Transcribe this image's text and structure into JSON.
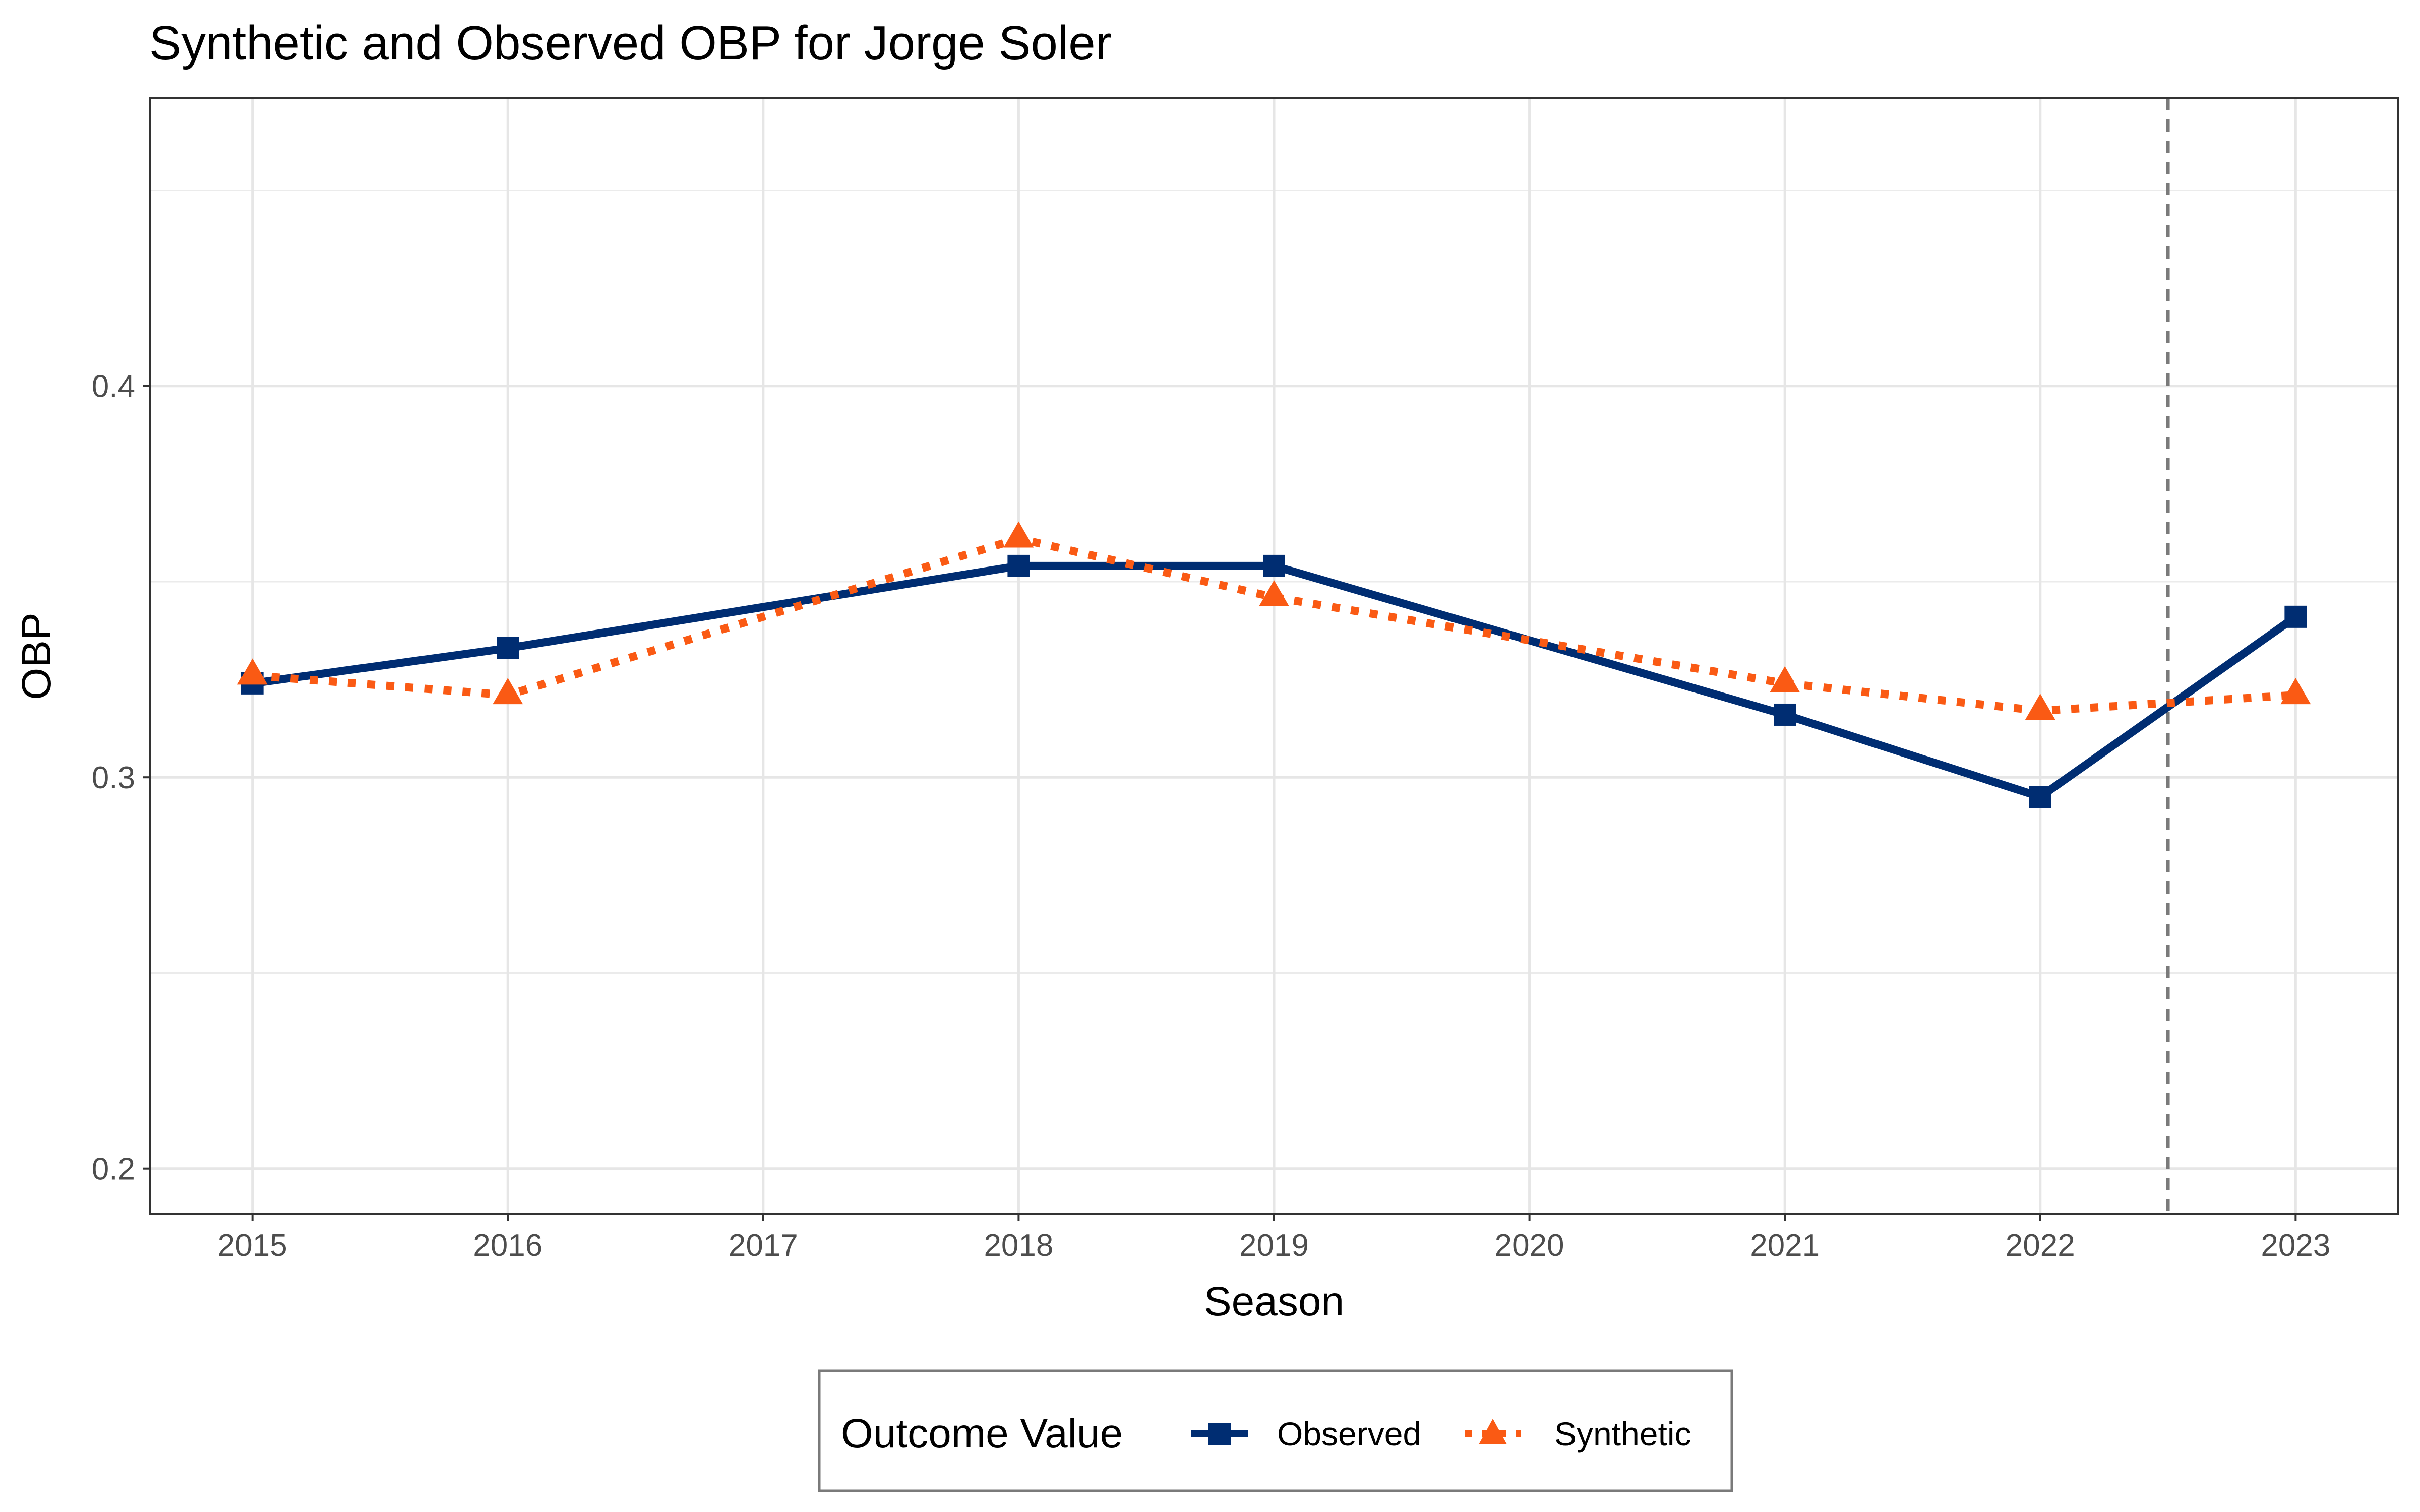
{
  "chart_data": {
    "type": "line",
    "title": "Synthetic and Observed OBP for Jorge Soler",
    "xlabel": "Season",
    "ylabel": "OBP",
    "x": [
      2015,
      2016,
      2017,
      2018,
      2019,
      2020,
      2021,
      2022,
      2023
    ],
    "x_tick_labels": [
      "2015",
      "2016",
      "2017",
      "2018",
      "2019",
      "2020",
      "2021",
      "2022",
      "2023"
    ],
    "y_tick_labels": [
      "0.2",
      "0.3",
      "0.4"
    ],
    "y_ticks": [
      0.2,
      0.3,
      0.4
    ],
    "y_minor_ticks": [
      0.25,
      0.35,
      0.45
    ],
    "xlim": [
      2014.6,
      2023.4
    ],
    "ylim": [
      0.1885,
      0.4735
    ],
    "vline": 2022.5,
    "grid": true,
    "legend_position": "bottom",
    "legend_title": "Outcome Value",
    "series": [
      {
        "name": "Observed",
        "color": "#002d72",
        "line_style": "solid",
        "marker": "square",
        "x": [
          2015,
          2016,
          2018,
          2019,
          2021,
          2022,
          2023
        ],
        "values": [
          0.324,
          0.333,
          0.354,
          0.354,
          0.316,
          0.295,
          0.341
        ]
      },
      {
        "name": "Synthetic",
        "color": "#fa5a14",
        "line_style": "dotted",
        "marker": "triangle",
        "x": [
          2015,
          2016,
          2018,
          2019,
          2021,
          2022,
          2023
        ],
        "values": [
          0.326,
          0.321,
          0.361,
          0.346,
          0.324,
          0.317,
          0.321
        ]
      }
    ]
  }
}
